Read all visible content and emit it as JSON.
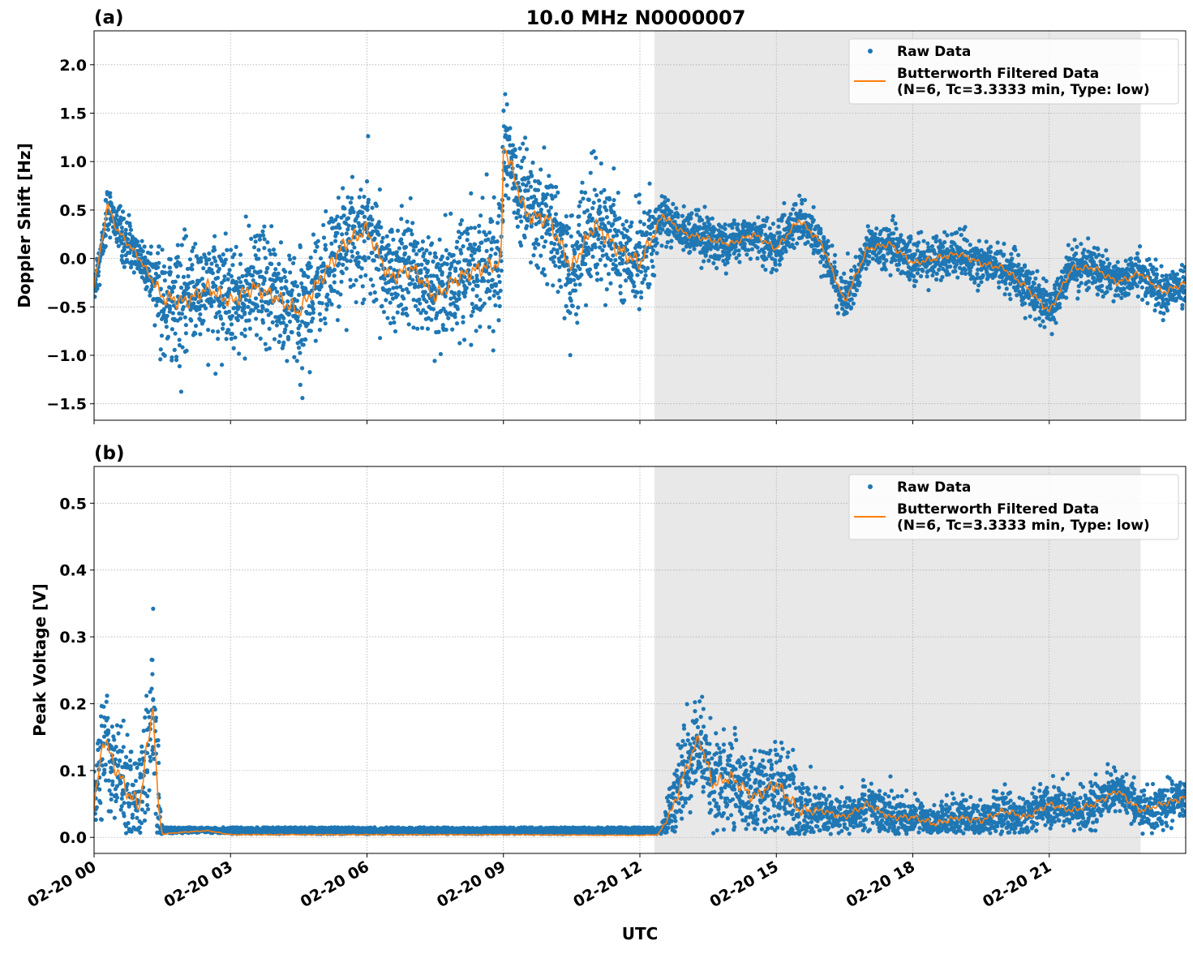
{
  "chart_data": [
    {
      "id": "a",
      "type": "scatter+line",
      "panel_label": "(a)",
      "title": "10.0 MHz N0000007",
      "xlabel": "",
      "ylabel": "Doppler Shift [Hz]",
      "xlim_hours": [
        0,
        24
      ],
      "ylim": [
        -1.67,
        2.35
      ],
      "yticks": [
        -1.5,
        -1.0,
        -0.5,
        0.0,
        0.5,
        1.0,
        1.5,
        2.0
      ],
      "ytick_labels": [
        "−1.5",
        "−1.0",
        "−0.5",
        "0.0",
        "0.5",
        "1.0",
        "1.5",
        "2.0"
      ],
      "grid": true,
      "shaded_interval_hours": [
        12.32,
        23.01
      ],
      "legend": {
        "placement": "top-right",
        "entries": [
          "Raw Data",
          "Butterworth Filtered Data",
          "(N=6, Tc=3.3333 min, Type: low)"
        ]
      },
      "filtered_hours": [
        0,
        0.3,
        0.5,
        1.0,
        1.5,
        2.0,
        2.5,
        3.0,
        3.5,
        4.0,
        4.5,
        5.0,
        5.5,
        6.0,
        6.5,
        7.0,
        7.5,
        8.0,
        8.5,
        8.95,
        9.0,
        9.5,
        10.0,
        10.5,
        11.0,
        11.5,
        12.0,
        12.5,
        13.0,
        13.5,
        14.0,
        14.5,
        15.0,
        15.5,
        16.0,
        16.5,
        17.0,
        17.5,
        18.0,
        18.5,
        19.0,
        19.5,
        20.0,
        20.5,
        21.0,
        21.5,
        22.0,
        22.5,
        23.0,
        23.5,
        24.0
      ],
      "filtered_values": [
        -0.3,
        0.55,
        0.3,
        0.0,
        -0.4,
        -0.45,
        -0.3,
        -0.45,
        -0.3,
        -0.4,
        -0.55,
        -0.2,
        0.15,
        0.3,
        -0.2,
        -0.1,
        -0.4,
        -0.2,
        -0.1,
        -0.05,
        1.2,
        0.45,
        0.4,
        -0.1,
        0.35,
        0.1,
        -0.05,
        0.45,
        0.25,
        0.2,
        0.15,
        0.25,
        0.1,
        0.4,
        0.15,
        -0.45,
        0.1,
        0.15,
        -0.05,
        0.0,
        0.05,
        -0.05,
        -0.1,
        -0.3,
        -0.55,
        -0.1,
        -0.1,
        -0.25,
        -0.15,
        -0.35,
        -0.25
      ],
      "raw_spread_hours": [
        0,
        1.3,
        1.4,
        12.3,
        12.4,
        24
      ],
      "raw_spread_values": [
        0.15,
        0.15,
        0.35,
        0.35,
        0.14,
        0.14
      ]
    },
    {
      "id": "b",
      "type": "scatter+line",
      "panel_label": "(b)",
      "xlabel": "UTC",
      "ylabel": "Peak Voltage [V]",
      "xlim_hours": [
        0,
        24
      ],
      "ylim": [
        -0.024,
        0.555
      ],
      "yticks": [
        0.0,
        0.1,
        0.2,
        0.3,
        0.4,
        0.5
      ],
      "ytick_labels": [
        "0.0",
        "0.1",
        "0.2",
        "0.3",
        "0.4",
        "0.5"
      ],
      "xtick_hours": [
        0,
        3,
        6,
        9,
        12,
        15,
        18,
        21
      ],
      "xtick_labels": [
        "02-20 00",
        "02-20 03",
        "02-20 06",
        "02-20 09",
        "02-20 12",
        "02-20 15",
        "02-20 18",
        "02-20 21"
      ],
      "grid": true,
      "shaded_interval_hours": [
        12.32,
        23.01
      ],
      "legend": {
        "placement": "top-right",
        "entries": [
          "Raw Data",
          "Butterworth Filtered Data",
          "(N=6, Tc=3.3333 min, Type: low)"
        ]
      },
      "filtered_hours": [
        0,
        0.2,
        0.5,
        0.8,
        1.0,
        1.3,
        1.4,
        1.5,
        2.0,
        2.5,
        3.0,
        6.0,
        9.0,
        12.0,
        12.4,
        12.7,
        13.0,
        13.3,
        13.6,
        14.0,
        14.5,
        15.0,
        15.5,
        16.0,
        16.5,
        17.0,
        17.5,
        18.0,
        18.5,
        19.0,
        19.5,
        20.0,
        20.5,
        21.0,
        21.5,
        22.0,
        22.5,
        23.0,
        23.5,
        24.0
      ],
      "filtered_values": [
        0.04,
        0.15,
        0.1,
        0.06,
        0.05,
        0.2,
        0.05,
        0.005,
        0.008,
        0.01,
        0.004,
        0.004,
        0.004,
        0.003,
        0.004,
        0.04,
        0.1,
        0.15,
        0.08,
        0.09,
        0.06,
        0.08,
        0.04,
        0.04,
        0.03,
        0.05,
        0.03,
        0.03,
        0.02,
        0.03,
        0.025,
        0.04,
        0.03,
        0.05,
        0.04,
        0.05,
        0.07,
        0.04,
        0.05,
        0.06
      ],
      "raw_spread_hours": [
        0,
        1.4,
        1.5,
        12.4,
        12.8,
        15.5,
        16,
        24
      ],
      "raw_spread_values": [
        0.05,
        0.06,
        0.003,
        0.002,
        0.04,
        0.04,
        0.02,
        0.02
      ]
    }
  ]
}
